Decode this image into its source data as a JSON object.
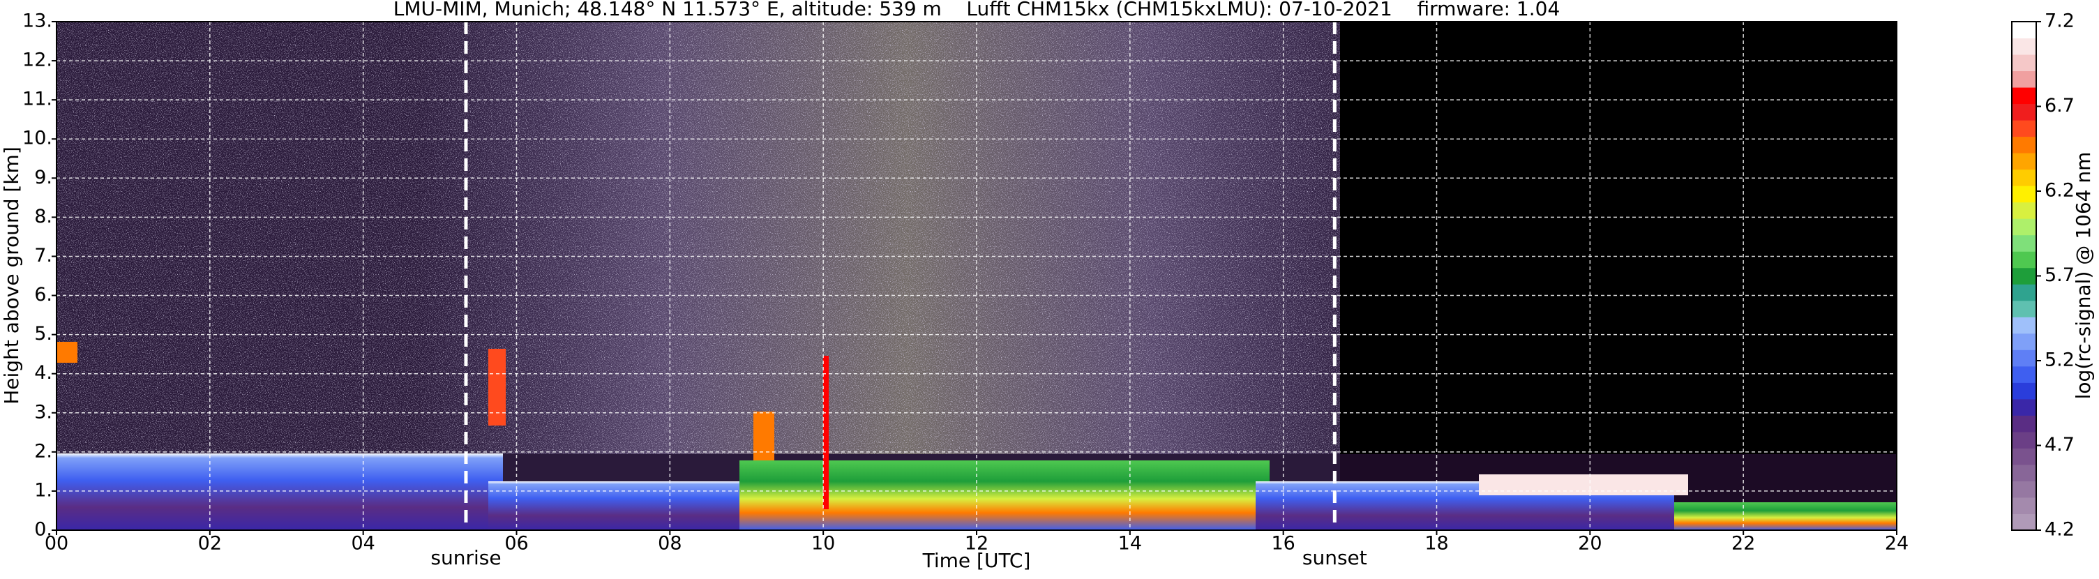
{
  "chart_data": {
    "type": "heatmap",
    "title": "LMU-MIM, Munich; 48.148° N 11.573° E, altitude: 539 m    Lufft CHM15kx (CHM15kxLMU): 07-10-2021    firmware: 1.04",
    "x_label": "Time [UTC]",
    "y_label": "Height above ground [km]",
    "xlim": [
      0,
      24
    ],
    "xticks": [
      {
        "value": 0,
        "label": "00"
      },
      {
        "value": 2,
        "label": "02"
      },
      {
        "value": 4,
        "label": "04"
      },
      {
        "value": 6,
        "label": "06"
      },
      {
        "value": 8,
        "label": "08"
      },
      {
        "value": 10,
        "label": "10"
      },
      {
        "value": 12,
        "label": "12"
      },
      {
        "value": 14,
        "label": "14"
      },
      {
        "value": 16,
        "label": "16"
      },
      {
        "value": 18,
        "label": "18"
      },
      {
        "value": 20,
        "label": "20"
      },
      {
        "value": 22,
        "label": "22"
      },
      {
        "value": 24,
        "label": "24"
      }
    ],
    "ylim": [
      0,
      13
    ],
    "yticks": [
      {
        "value": 0,
        "label": "0."
      },
      {
        "value": 1,
        "label": "1."
      },
      {
        "value": 2,
        "label": "2."
      },
      {
        "value": 3,
        "label": "3."
      },
      {
        "value": 4,
        "label": "4."
      },
      {
        "value": 5,
        "label": "5."
      },
      {
        "value": 6,
        "label": "6."
      },
      {
        "value": 7,
        "label": "7."
      },
      {
        "value": 8,
        "label": "8."
      },
      {
        "value": 9,
        "label": "9."
      },
      {
        "value": 10,
        "label": "10."
      },
      {
        "value": 11,
        "label": "11."
      },
      {
        "value": 12,
        "label": "12."
      },
      {
        "value": 13,
        "label": "13."
      }
    ],
    "grid": true,
    "annotations": [
      {
        "text": "sunrise",
        "x": 5.34
      },
      {
        "text": "sunset",
        "x": 16.67
      }
    ],
    "colorbar": {
      "label": "log(rc-signal) @ 1064 nm",
      "lim": [
        4.2,
        7.2
      ],
      "ticks": [
        4.2,
        4.7,
        5.2,
        5.7,
        6.2,
        6.7,
        7.2
      ],
      "colors": [
        "#b09ab8",
        "#a48aad",
        "#9678a2",
        "#886698",
        "#7a528e",
        "#6b3f86",
        "#5a2d84",
        "#3a27a8",
        "#2a3ddb",
        "#3f5ff0",
        "#5f7ff5",
        "#7fa0f8",
        "#9fc0fa",
        "#5fc0b0",
        "#2fa38f",
        "#1e9e3a",
        "#4fc850",
        "#7fe07a",
        "#aef06a",
        "#d8f040",
        "#fff000",
        "#ffcc00",
        "#ffa500",
        "#ff7a00",
        "#ff4a1e",
        "#f01e1e",
        "#ff0000",
        "#f0a0a0",
        "#f5c8c8",
        "#fae6e6",
        "#ffffff"
      ]
    }
  }
}
